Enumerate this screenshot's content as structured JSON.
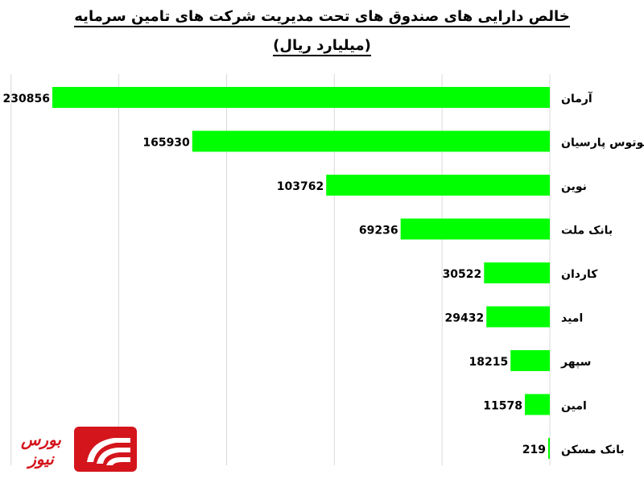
{
  "chart_data": {
    "type": "bar",
    "orientation": "horizontal",
    "title": "خالص دارایی های صندوق های تحت مدیریت شرکت های تامین سرمایه",
    "subtitle": "(میلیارد ریال)",
    "categories": [
      "آرمان",
      "لوتوس پارسیان",
      "نوین",
      "بانک ملت",
      "کاردان",
      "امید",
      "سپهر",
      "امین",
      "بانک مسکن"
    ],
    "values": [
      230856,
      165930,
      103762,
      69236,
      30522,
      29432,
      18215,
      11578,
      219
    ],
    "bar_color": "#00ff00",
    "grid": true,
    "xlim": [
      0,
      250000
    ],
    "axis_direction": "right-to-left"
  },
  "logo": {
    "text": "بورس نیوز",
    "color": "#d4151c"
  }
}
